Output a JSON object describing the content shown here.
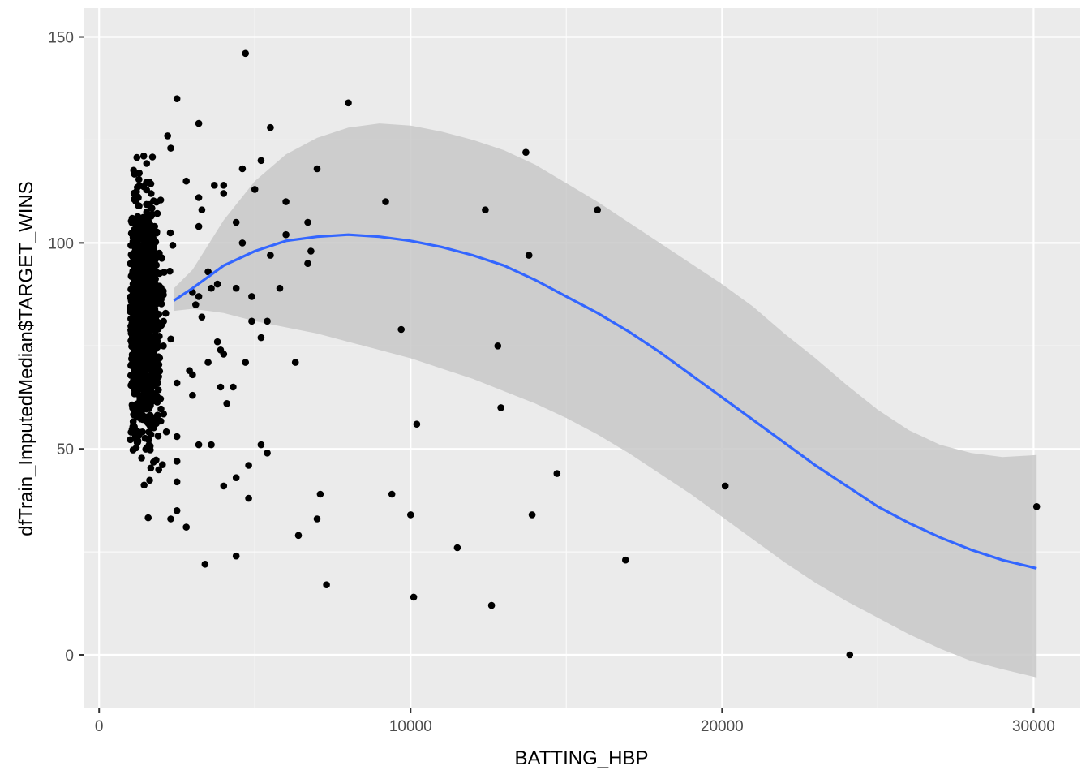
{
  "chart_data": {
    "type": "scatter",
    "title": "",
    "xlabel": "BATTING_HBP",
    "ylabel": "dfTrain_ImputedMedian$TARGET_WINS",
    "xlim": [
      -500,
      31500
    ],
    "ylim": [
      -13,
      157
    ],
    "x_ticks": [
      0,
      10000,
      20000,
      30000
    ],
    "x_tick_labels": [
      "0",
      "10000",
      "20000",
      "30000"
    ],
    "y_ticks": [
      0,
      50,
      100,
      150
    ],
    "y_tick_labels": [
      "0",
      "50",
      "100",
      "150"
    ],
    "x_minor": [
      5000,
      15000,
      25000
    ],
    "y_minor": [
      25,
      75,
      125
    ],
    "grid": true,
    "colors": {
      "panel": "#ebebeb",
      "grid": "#ffffff",
      "points": "#000000",
      "smooth_line": "#3366ff",
      "ribbon": "#c8c8c8"
    },
    "cluster": {
      "description_x_range": [
        1000,
        2600
      ],
      "description_y_range": [
        21,
        126
      ],
      "count": 1100
    },
    "points": [
      {
        "x": 4700,
        "y": 146
      },
      {
        "x": 2500,
        "y": 135
      },
      {
        "x": 8000,
        "y": 134
      },
      {
        "x": 3200,
        "y": 129
      },
      {
        "x": 5500,
        "y": 128
      },
      {
        "x": 2200,
        "y": 126
      },
      {
        "x": 2300,
        "y": 123
      },
      {
        "x": 13700,
        "y": 122
      },
      {
        "x": 5200,
        "y": 120
      },
      {
        "x": 4600,
        "y": 118
      },
      {
        "x": 7000,
        "y": 118
      },
      {
        "x": 2800,
        "y": 115
      },
      {
        "x": 3700,
        "y": 114
      },
      {
        "x": 4000,
        "y": 114
      },
      {
        "x": 5000,
        "y": 113
      },
      {
        "x": 4000,
        "y": 112
      },
      {
        "x": 3200,
        "y": 111
      },
      {
        "x": 6000,
        "y": 110
      },
      {
        "x": 9200,
        "y": 110
      },
      {
        "x": 3300,
        "y": 108
      },
      {
        "x": 12400,
        "y": 108
      },
      {
        "x": 16000,
        "y": 108
      },
      {
        "x": 4400,
        "y": 105
      },
      {
        "x": 6700,
        "y": 105
      },
      {
        "x": 3200,
        "y": 104
      },
      {
        "x": 6000,
        "y": 102
      },
      {
        "x": 4600,
        "y": 100
      },
      {
        "x": 6800,
        "y": 98
      },
      {
        "x": 5500,
        "y": 97
      },
      {
        "x": 13800,
        "y": 97
      },
      {
        "x": 6700,
        "y": 95
      },
      {
        "x": 3500,
        "y": 93
      },
      {
        "x": 3800,
        "y": 90
      },
      {
        "x": 3600,
        "y": 89
      },
      {
        "x": 4400,
        "y": 89
      },
      {
        "x": 5800,
        "y": 89
      },
      {
        "x": 3000,
        "y": 88
      },
      {
        "x": 3200,
        "y": 87
      },
      {
        "x": 4900,
        "y": 87
      },
      {
        "x": 3100,
        "y": 85
      },
      {
        "x": 3300,
        "y": 82
      },
      {
        "x": 4900,
        "y": 81
      },
      {
        "x": 5400,
        "y": 81
      },
      {
        "x": 9700,
        "y": 79
      },
      {
        "x": 5200,
        "y": 77
      },
      {
        "x": 3800,
        "y": 76
      },
      {
        "x": 12800,
        "y": 75
      },
      {
        "x": 3900,
        "y": 74
      },
      {
        "x": 4000,
        "y": 73
      },
      {
        "x": 3500,
        "y": 71
      },
      {
        "x": 4700,
        "y": 71
      },
      {
        "x": 6300,
        "y": 71
      },
      {
        "x": 2900,
        "y": 69
      },
      {
        "x": 3000,
        "y": 68
      },
      {
        "x": 2500,
        "y": 66
      },
      {
        "x": 3900,
        "y": 65
      },
      {
        "x": 4300,
        "y": 65
      },
      {
        "x": 3000,
        "y": 63
      },
      {
        "x": 4100,
        "y": 61
      },
      {
        "x": 12900,
        "y": 60
      },
      {
        "x": 10200,
        "y": 56
      },
      {
        "x": 2500,
        "y": 53
      },
      {
        "x": 3200,
        "y": 51
      },
      {
        "x": 3600,
        "y": 51
      },
      {
        "x": 5200,
        "y": 51
      },
      {
        "x": 5400,
        "y": 49
      },
      {
        "x": 2500,
        "y": 47
      },
      {
        "x": 4800,
        "y": 46
      },
      {
        "x": 14700,
        "y": 44
      },
      {
        "x": 4400,
        "y": 43
      },
      {
        "x": 2500,
        "y": 42
      },
      {
        "x": 4000,
        "y": 41
      },
      {
        "x": 20100,
        "y": 41
      },
      {
        "x": 7100,
        "y": 39
      },
      {
        "x": 9400,
        "y": 39
      },
      {
        "x": 4800,
        "y": 38
      },
      {
        "x": 30100,
        "y": 36
      },
      {
        "x": 2500,
        "y": 35
      },
      {
        "x": 10000,
        "y": 34
      },
      {
        "x": 13900,
        "y": 34
      },
      {
        "x": 2300,
        "y": 33
      },
      {
        "x": 7000,
        "y": 33
      },
      {
        "x": 2800,
        "y": 31
      },
      {
        "x": 6400,
        "y": 29
      },
      {
        "x": 11500,
        "y": 26
      },
      {
        "x": 4400,
        "y": 24
      },
      {
        "x": 16900,
        "y": 23
      },
      {
        "x": 3400,
        "y": 22
      },
      {
        "x": 7300,
        "y": 17
      },
      {
        "x": 10100,
        "y": 14
      },
      {
        "x": 12600,
        "y": 12
      },
      {
        "x": 24100,
        "y": 0
      }
    ],
    "smooth": {
      "x": [
        2400,
        3000,
        4000,
        5000,
        6000,
        7000,
        8000,
        9000,
        10000,
        11000,
        12000,
        13000,
        14000,
        15000,
        16000,
        17000,
        18000,
        19000,
        20000,
        21000,
        22000,
        23000,
        24000,
        25000,
        26000,
        27000,
        28000,
        29000,
        30100
      ],
      "y": [
        86,
        89,
        94.5,
        98,
        100.5,
        101.5,
        102,
        101.5,
        100.5,
        99,
        97,
        94.5,
        91,
        87,
        83,
        78.5,
        73.5,
        68,
        62.5,
        57,
        51.5,
        46,
        41,
        36,
        32,
        28.5,
        25.5,
        23,
        21
      ],
      "lower": [
        83.5,
        84,
        83,
        81,
        79.5,
        78,
        76,
        74,
        72,
        69.5,
        67,
        64,
        61,
        57.5,
        53.5,
        49,
        44,
        39,
        33.5,
        28,
        22.5,
        17.5,
        13,
        9,
        5,
        1.5,
        -1.5,
        -3.5,
        -5.5
      ],
      "upper": [
        89,
        93.5,
        105.5,
        115,
        121.5,
        125.5,
        128,
        129,
        128.5,
        127,
        125,
        122.5,
        119,
        114.5,
        110,
        105,
        100,
        95,
        90,
        84.5,
        78,
        72,
        65.5,
        59.5,
        54.5,
        51,
        49,
        48,
        48.5
      ]
    }
  }
}
